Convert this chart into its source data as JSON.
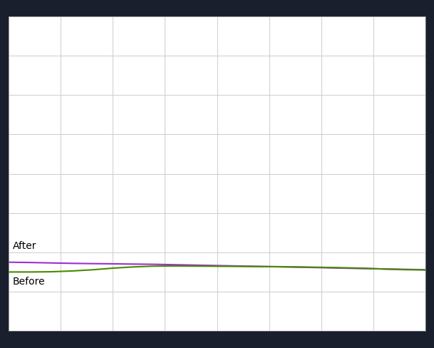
{
  "background_color": "#1a1f2e",
  "plot_bg_color": "#ffffff",
  "grid_color": "#cccccc",
  "after_color": "#9b30d0",
  "before_color": "#4a8a00",
  "after_label": "After",
  "before_label": "Before",
  "x_points": [
    0,
    1,
    2,
    3,
    4,
    5,
    6,
    7,
    8,
    9,
    10,
    11,
    12,
    13,
    14,
    15,
    16,
    17,
    18,
    19,
    20
  ],
  "after_y": [
    980,
    976,
    970,
    964,
    960,
    957,
    953,
    950,
    944,
    938,
    932,
    926,
    920,
    914,
    908,
    902,
    895,
    889,
    884,
    878,
    872
  ],
  "before_y": [
    840,
    840,
    843,
    854,
    871,
    895,
    913,
    924,
    926,
    924,
    922,
    920,
    918,
    916,
    912,
    907,
    901,
    895,
    882,
    873,
    869
  ],
  "label_fontsize": 10,
  "ylim_min": 0,
  "ylim_max": 4500,
  "xlim_min": 0,
  "xlim_max": 20,
  "grid_nx": 8,
  "grid_ny": 8,
  "linewidth": 1.5
}
